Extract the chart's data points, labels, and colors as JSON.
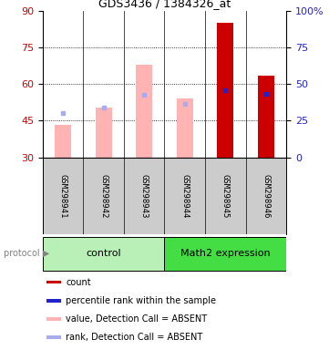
{
  "title": "GDS3436 / 1384326_at",
  "samples": [
    "GSM298941",
    "GSM298942",
    "GSM298943",
    "GSM298944",
    "GSM298945",
    "GSM298946"
  ],
  "value_bars": [
    43.5,
    50.5,
    68.0,
    54.0,
    85.0,
    63.5
  ],
  "value_bar_colors": [
    "#ffb3b3",
    "#ffb3b3",
    "#ffb3b3",
    "#ffb3b3",
    "#cc0000",
    "#cc0000"
  ],
  "rank_markers": [
    48.0,
    50.5,
    55.5,
    52.0,
    57.5,
    56.0
  ],
  "rank_marker_colors": [
    "#aaaaee",
    "#aaaaee",
    "#aaaaee",
    "#aaaaee",
    "#2222cc",
    "#2222cc"
  ],
  "bar_bottom": 30,
  "ylim_left": [
    30,
    90
  ],
  "ylim_right": [
    0,
    100
  ],
  "yticks_left": [
    30,
    45,
    60,
    75,
    90
  ],
  "yticks_right": [
    0,
    25,
    50,
    75,
    100
  ],
  "left_axis_color": "#cc0000",
  "right_axis_color": "#2222cc",
  "bar_width": 0.4,
  "label_area_bg": "#cccccc",
  "control_color": "#b8f0b8",
  "math2_color": "#44dd44",
  "legend_items": [
    {
      "color": "#cc0000",
      "label": "count"
    },
    {
      "color": "#2222cc",
      "label": "percentile rank within the sample"
    },
    {
      "color": "#ffb3b3",
      "label": "value, Detection Call = ABSENT"
    },
    {
      "color": "#aaaaee",
      "label": "rank, Detection Call = ABSENT"
    }
  ],
  "n_control": 3,
  "n_math2": 3
}
